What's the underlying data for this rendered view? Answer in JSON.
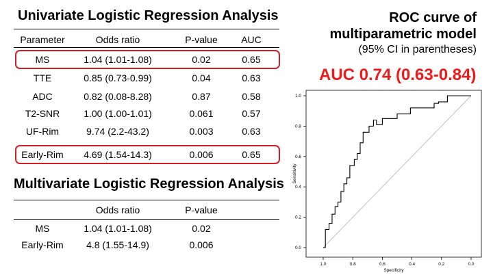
{
  "univariate": {
    "title": "Univariate Logistic Regression Analysis",
    "headers": [
      "Parameter",
      "Odds ratio",
      "P-value",
      "AUC"
    ],
    "rows": [
      {
        "parameter": "MS",
        "odds_ratio": "1.04 (1.01-1.08)",
        "p_value": "0.02",
        "auc": "0.65",
        "highlight": true
      },
      {
        "parameter": "TTE",
        "odds_ratio": "0.85 (0.73-0.99)",
        "p_value": "0.04",
        "auc": "0.63",
        "highlight": false
      },
      {
        "parameter": "ADC",
        "odds_ratio": "0.82 (0.08-8.28)",
        "p_value": "0.87",
        "auc": "0.58",
        "highlight": false
      },
      {
        "parameter": "T2-SNR",
        "odds_ratio": "1.00 (1.00-1.01)",
        "p_value": "0.061",
        "auc": "0.57",
        "highlight": false
      },
      {
        "parameter": "UF-Rim",
        "odds_ratio": "9.74 (2.2-43.2)",
        "p_value": "0.003",
        "auc": "0.63",
        "highlight": false
      },
      {
        "parameter": "Early-Rim",
        "odds_ratio": "4.69 (1.54-14.3)",
        "p_value": "0.006",
        "auc": "0.65",
        "highlight": true
      }
    ]
  },
  "multivariate": {
    "title": "Multivariate Logistic Regression Analysis",
    "headers": [
      "",
      "Odds ratio",
      "P-value"
    ],
    "rows": [
      {
        "parameter": "MS",
        "odds_ratio": "1.04 (1.01-1.08)",
        "p_value": "0.02"
      },
      {
        "parameter": "Early-Rim",
        "odds_ratio": "4.8 (1.55-14.9)",
        "p_value": "0.006"
      }
    ]
  },
  "roc": {
    "title_line1": "ROC curve of",
    "title_line2": "multiparametric model",
    "subtitle": "(95% CI in parentheses)",
    "auc_text": "AUC 0.74 (0.63-0.84)"
  },
  "colors": {
    "highlight": "#d21f26",
    "auc_text": "#f01818",
    "reference_line": "#bbbbbb"
  },
  "chart_data": {
    "type": "line",
    "title": "",
    "xlabel": "Specificity",
    "ylabel": "Sensitivity",
    "xlim": [
      1.0,
      0.0
    ],
    "ylim": [
      0.0,
      1.0
    ],
    "x_reversed": true,
    "xticks": [
      "1.0",
      "0.8",
      "0.6",
      "0.4",
      "0.2",
      "0.0"
    ],
    "yticks": [
      "0.0",
      "0.2",
      "0.4",
      "0.6",
      "0.8",
      "1.0"
    ],
    "grid": false,
    "reference_line": {
      "x": [
        1.0,
        0.0
      ],
      "y": [
        0.0,
        1.0
      ]
    },
    "series": [
      {
        "x": [
          1.0,
          0.985,
          0.985,
          0.96,
          0.96,
          0.94,
          0.94,
          0.92,
          0.92,
          0.9,
          0.9,
          0.88,
          0.88,
          0.86,
          0.86,
          0.84,
          0.84,
          0.82,
          0.82,
          0.79,
          0.79,
          0.77,
          0.77,
          0.75,
          0.75,
          0.73,
          0.73,
          0.69,
          0.69,
          0.66,
          0.66,
          0.64,
          0.64,
          0.6,
          0.6,
          0.5,
          0.5,
          0.45,
          0.45,
          0.41,
          0.41,
          0.25,
          0.25,
          0.22,
          0.22,
          0.2,
          0.2,
          0.16,
          0.16,
          0.0
        ],
        "y": [
          0.0,
          0.0,
          0.12,
          0.12,
          0.16,
          0.16,
          0.22,
          0.22,
          0.27,
          0.27,
          0.3,
          0.3,
          0.37,
          0.37,
          0.42,
          0.42,
          0.46,
          0.46,
          0.54,
          0.54,
          0.58,
          0.58,
          0.62,
          0.62,
          0.69,
          0.69,
          0.76,
          0.76,
          0.8,
          0.8,
          0.84,
          0.84,
          0.81,
          0.81,
          0.85,
          0.85,
          0.88,
          0.88,
          0.88,
          0.88,
          0.92,
          0.92,
          0.95,
          0.95,
          0.96,
          0.96,
          0.96,
          0.96,
          1.0,
          1.0
        ]
      }
    ]
  }
}
